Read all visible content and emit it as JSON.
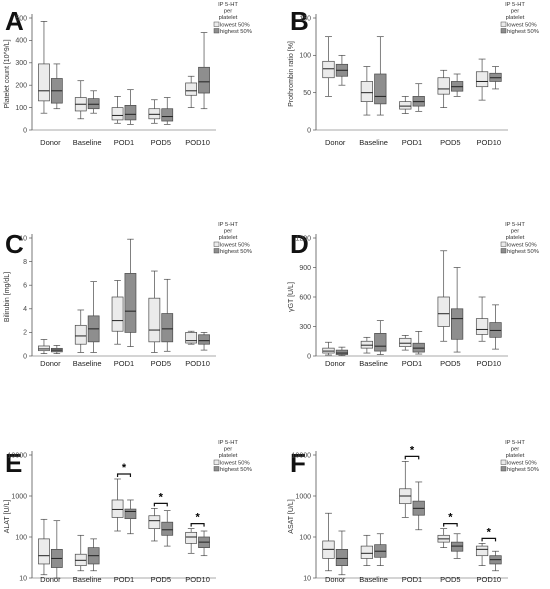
{
  "colors": {
    "lowest": "#ebebeb",
    "highest": "#8e8e8e",
    "stroke": "#4a4a4a",
    "axis": "#555555"
  },
  "chart_data": [
    {
      "panel": "A",
      "type": "box",
      "ylabel": "Platelet count [10^9/L]",
      "ylim": [
        0,
        500
      ],
      "yticks": [
        "0",
        "100",
        "200",
        "300",
        "400",
        "500"
      ],
      "ytick_values": [
        0,
        100,
        200,
        300,
        400,
        500
      ],
      "log": false,
      "legend": {
        "title": [
          "IP 5-HT",
          "per",
          "platelet"
        ],
        "entries": [
          "lowest 50%",
          "highest 50%"
        ]
      },
      "categories": [
        "Donor",
        "Baseline",
        "POD1",
        "POD5",
        "POD10"
      ],
      "series": [
        {
          "name": "lowest 50%",
          "boxes": [
            {
              "min": 75,
              "q1": 130,
              "median": 175,
              "q3": 295,
              "max": 485
            },
            {
              "min": 50,
              "q1": 85,
              "median": 115,
              "q3": 145,
              "max": 220
            },
            {
              "min": 30,
              "q1": 45,
              "median": 65,
              "q3": 100,
              "max": 150
            },
            {
              "min": 30,
              "q1": 50,
              "median": 70,
              "q3": 95,
              "max": 135
            },
            {
              "min": 100,
              "q1": 155,
              "median": 175,
              "q3": 210,
              "max": 240
            }
          ]
        },
        {
          "name": "highest 50%",
          "boxes": [
            {
              "min": 95,
              "q1": 120,
              "median": 175,
              "q3": 230,
              "max": 295
            },
            {
              "min": 75,
              "q1": 95,
              "median": 115,
              "q3": 140,
              "max": 175
            },
            {
              "min": 25,
              "q1": 45,
              "median": 70,
              "q3": 110,
              "max": 180
            },
            {
              "min": 25,
              "q1": 40,
              "median": 60,
              "q3": 95,
              "max": 145
            },
            {
              "min": 95,
              "q1": 165,
              "median": 215,
              "q3": 280,
              "max": 435
            }
          ]
        }
      ],
      "significance": []
    },
    {
      "panel": "B",
      "type": "box",
      "ylabel": "Prothrombin ratio [%]",
      "ylim": [
        0,
        150
      ],
      "yticks": [
        "0",
        "50",
        "100",
        "150"
      ],
      "ytick_values": [
        0,
        50,
        100,
        150
      ],
      "log": false,
      "legend": {
        "title": [
          "IP 5-HT",
          "per",
          "platelet"
        ],
        "entries": [
          "lowest 50%",
          "highest 50%"
        ]
      },
      "categories": [
        "Donor",
        "Baseline",
        "POD1",
        "POD5",
        "POD10"
      ],
      "series": [
        {
          "name": "lowest 50%",
          "boxes": [
            {
              "min": 45,
              "q1": 70,
              "median": 82,
              "q3": 92,
              "max": 125
            },
            {
              "min": 20,
              "q1": 38,
              "median": 50,
              "q3": 65,
              "max": 85
            },
            {
              "min": 22,
              "q1": 28,
              "median": 32,
              "q3": 38,
              "max": 45
            },
            {
              "min": 30,
              "q1": 48,
              "median": 55,
              "q3": 70,
              "max": 80
            },
            {
              "min": 40,
              "q1": 58,
              "median": 65,
              "q3": 78,
              "max": 95
            }
          ]
        },
        {
          "name": "highest 50%",
          "boxes": [
            {
              "min": 60,
              "q1": 72,
              "median": 80,
              "q3": 88,
              "max": 100
            },
            {
              "min": 20,
              "q1": 35,
              "median": 45,
              "q3": 75,
              "max": 125
            },
            {
              "min": 25,
              "q1": 32,
              "median": 38,
              "q3": 45,
              "max": 62
            },
            {
              "min": 45,
              "q1": 52,
              "median": 58,
              "q3": 65,
              "max": 75
            },
            {
              "min": 55,
              "q1": 65,
              "median": 70,
              "q3": 76,
              "max": 85
            }
          ]
        }
      ],
      "significance": []
    },
    {
      "panel": "C",
      "type": "box",
      "ylabel": "Bilirubin [mg/dL]",
      "ylim": [
        0,
        10
      ],
      "yticks": [
        "0",
        "2",
        "4",
        "6",
        "8",
        "10"
      ],
      "ytick_values": [
        0,
        2,
        4,
        6,
        8,
        10
      ],
      "log": false,
      "legend": {
        "title": [
          "IP 5-HT",
          "per",
          "platelet"
        ],
        "entries": [
          "lowest 50%",
          "highest 50%"
        ]
      },
      "categories": [
        "Donor",
        "Baseline",
        "POD1",
        "POD5",
        "POD10"
      ],
      "series": [
        {
          "name": "lowest 50%",
          "boxes": [
            {
              "min": 0.2,
              "q1": 0.45,
              "median": 0.6,
              "q3": 0.85,
              "max": 1.4
            },
            {
              "min": 0.3,
              "q1": 1.0,
              "median": 1.7,
              "q3": 2.6,
              "max": 3.9
            },
            {
              "min": 1.0,
              "q1": 2.1,
              "median": 3.0,
              "q3": 5.0,
              "max": 6.4
            },
            {
              "min": 0.3,
              "q1": 1.2,
              "median": 2.2,
              "q3": 4.9,
              "max": 7.2
            },
            {
              "min": 1.0,
              "q1": 1.1,
              "median": 1.3,
              "q3": 2.0,
              "max": 2.1
            }
          ]
        },
        {
          "name": "highest 50%",
          "boxes": [
            {
              "min": 0.2,
              "q1": 0.35,
              "median": 0.5,
              "q3": 0.65,
              "max": 0.9
            },
            {
              "min": 0.3,
              "q1": 1.2,
              "median": 2.3,
              "q3": 3.4,
              "max": 6.3
            },
            {
              "min": 0.8,
              "q1": 2.0,
              "median": 3.8,
              "q3": 7.0,
              "max": 9.9
            },
            {
              "min": 0.4,
              "q1": 1.2,
              "median": 2.3,
              "q3": 3.6,
              "max": 6.5
            },
            {
              "min": 0.5,
              "q1": 1.0,
              "median": 1.3,
              "q3": 1.8,
              "max": 2.0
            }
          ]
        }
      ],
      "significance": []
    },
    {
      "panel": "D",
      "type": "box",
      "ylabel": "γGT [U/L]",
      "ylim": [
        0,
        1200
      ],
      "yticks": [
        "0",
        "300",
        "600",
        "900",
        "1200"
      ],
      "ytick_values": [
        0,
        300,
        600,
        900,
        1200
      ],
      "log": false,
      "legend": {
        "title": [
          "IP 5-HT",
          "per",
          "platelet"
        ],
        "entries": [
          "lowest 50%",
          "highest 50%"
        ]
      },
      "categories": [
        "Donor",
        "Baseline",
        "POD1",
        "POD5",
        "POD10"
      ],
      "series": [
        {
          "name": "lowest 50%",
          "boxes": [
            {
              "min": 10,
              "q1": 30,
              "median": 50,
              "q3": 80,
              "max": 140
            },
            {
              "min": 30,
              "q1": 80,
              "median": 110,
              "q3": 150,
              "max": 190
            },
            {
              "min": 60,
              "q1": 95,
              "median": 130,
              "q3": 180,
              "max": 210
            },
            {
              "min": 150,
              "q1": 300,
              "median": 430,
              "q3": 600,
              "max": 1070
            },
            {
              "min": 150,
              "q1": 220,
              "median": 270,
              "q3": 380,
              "max": 600
            }
          ]
        },
        {
          "name": "highest 50%",
          "boxes": [
            {
              "min": 5,
              "q1": 15,
              "median": 30,
              "q3": 60,
              "max": 90
            },
            {
              "min": 15,
              "q1": 50,
              "median": 100,
              "q3": 230,
              "max": 360
            },
            {
              "min": 20,
              "q1": 40,
              "median": 80,
              "q3": 130,
              "max": 250
            },
            {
              "min": 40,
              "q1": 170,
              "median": 380,
              "q3": 480,
              "max": 900
            },
            {
              "min": 70,
              "q1": 190,
              "median": 260,
              "q3": 340,
              "max": 520
            }
          ]
        }
      ],
      "significance": []
    },
    {
      "panel": "E",
      "type": "box",
      "ylabel": "ALAT [U/L]",
      "ylim": [
        10,
        10000
      ],
      "yticks": [
        "10",
        "100",
        "1000",
        "10000"
      ],
      "ytick_values": [
        10,
        100,
        1000,
        10000
      ],
      "log": true,
      "legend": {
        "title": [
          "IP 5-HT",
          "per",
          "platelet"
        ],
        "entries": [
          "lowest 50%",
          "highest 50%"
        ]
      },
      "categories": [
        "Donor",
        "Baseline",
        "POD1",
        "POD5",
        "POD10"
      ],
      "series": [
        {
          "name": "lowest 50%",
          "boxes": [
            {
              "min": 12,
              "q1": 22,
              "median": 35,
              "q3": 90,
              "max": 270
            },
            {
              "min": 15,
              "q1": 20,
              "median": 27,
              "q3": 38,
              "max": 110
            },
            {
              "min": 140,
              "q1": 300,
              "median": 470,
              "q3": 800,
              "max": 2600
            },
            {
              "min": 80,
              "q1": 160,
              "median": 250,
              "q3": 330,
              "max": 500
            },
            {
              "min": 40,
              "q1": 70,
              "median": 100,
              "q3": 130,
              "max": 160
            }
          ]
        },
        {
          "name": "highest 50%",
          "boxes": [
            {
              "min": 10,
              "q1": 18,
              "median": 30,
              "q3": 50,
              "max": 250
            },
            {
              "min": 15,
              "q1": 22,
              "median": 35,
              "q3": 55,
              "max": 90
            },
            {
              "min": 120,
              "q1": 280,
              "median": 420,
              "q3": 480,
              "max": 800
            },
            {
              "min": 60,
              "q1": 110,
              "median": 150,
              "q3": 230,
              "max": 440
            },
            {
              "min": 35,
              "q1": 55,
              "median": 75,
              "q3": 100,
              "max": 140
            }
          ]
        }
      ],
      "significance": [
        {
          "category": "POD1",
          "label": "*"
        },
        {
          "category": "POD5",
          "label": "*"
        },
        {
          "category": "POD10",
          "label": "*"
        }
      ]
    },
    {
      "panel": "F",
      "type": "box",
      "ylabel": "ASAT [U/L]",
      "ylim": [
        10,
        10000
      ],
      "yticks": [
        "10",
        "100",
        "1000",
        "10000"
      ],
      "ytick_values": [
        10,
        100,
        1000,
        10000
      ],
      "log": true,
      "legend": {
        "title": [
          "IP 5-HT",
          "per",
          "platelet"
        ],
        "entries": [
          "lowest 50%",
          "highest 50%"
        ]
      },
      "categories": [
        "Donor",
        "Baseline",
        "POD1",
        "POD5",
        "POD10"
      ],
      "series": [
        {
          "name": "lowest 50%",
          "boxes": [
            {
              "min": 15,
              "q1": 30,
              "median": 50,
              "q3": 80,
              "max": 380
            },
            {
              "min": 20,
              "q1": 30,
              "median": 40,
              "q3": 60,
              "max": 110
            },
            {
              "min": 300,
              "q1": 650,
              "median": 1000,
              "q3": 1500,
              "max": 7000
            },
            {
              "min": 55,
              "q1": 75,
              "median": 90,
              "q3": 110,
              "max": 160
            },
            {
              "min": 20,
              "q1": 35,
              "median": 50,
              "q3": 60,
              "max": 70
            }
          ]
        },
        {
          "name": "highest 50%",
          "boxes": [
            {
              "min": 12,
              "q1": 20,
              "median": 30,
              "q3": 50,
              "max": 140
            },
            {
              "min": 20,
              "q1": 32,
              "median": 45,
              "q3": 65,
              "max": 120
            },
            {
              "min": 150,
              "q1": 340,
              "median": 500,
              "q3": 750,
              "max": 2200
            },
            {
              "min": 30,
              "q1": 45,
              "median": 60,
              "q3": 75,
              "max": 120
            },
            {
              "min": 15,
              "q1": 22,
              "median": 28,
              "q3": 35,
              "max": 45
            }
          ]
        }
      ],
      "significance": [
        {
          "category": "POD1",
          "label": "*"
        },
        {
          "category": "POD5",
          "label": "*"
        },
        {
          "category": "POD10",
          "label": "*"
        }
      ]
    }
  ]
}
